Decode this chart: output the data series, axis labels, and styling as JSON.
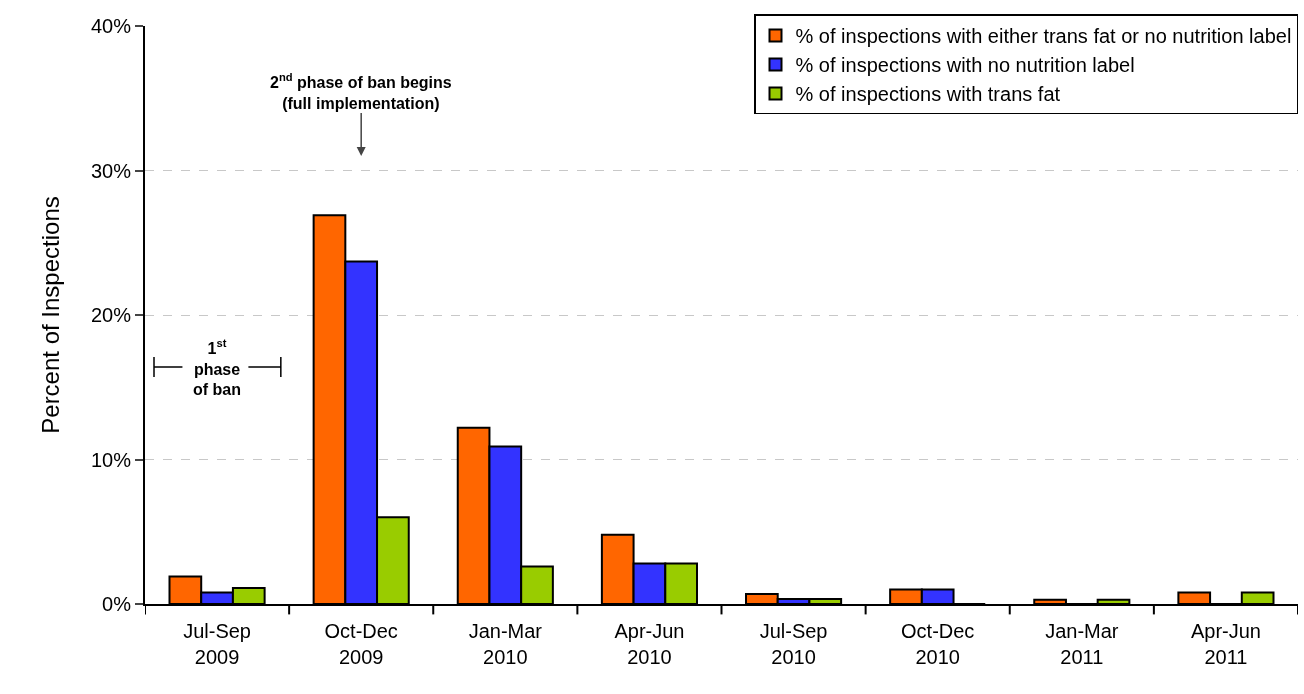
{
  "chart_data": {
    "type": "bar",
    "ylabel": "Percent of Inspections",
    "categories": [
      "Jul-Sep\n2009",
      "Oct-Dec\n2009",
      "Jan-Mar\n2010",
      "Apr-Jun\n2010",
      "Jul-Sep\n2010",
      "Oct-Dec\n2010",
      "Jan-Mar\n2011",
      "Apr-Jun\n2011"
    ],
    "series": [
      {
        "name": "% of inspections with either trans fat or no nutrition label",
        "color": "#ff6600",
        "values": [
          1.9,
          26.9,
          12.2,
          4.8,
          0.7,
          1.0,
          0.3,
          0.8
        ]
      },
      {
        "name": "% of inspections with no nutrition label",
        "color": "#3333ff",
        "values": [
          0.8,
          23.7,
          10.9,
          2.8,
          0.35,
          1.0,
          0,
          0
        ]
      },
      {
        "name": "% of inspections with trans fat",
        "color": "#99cc00",
        "values": [
          1.1,
          6.0,
          2.6,
          2.8,
          0.35,
          0,
          0.3,
          0.8
        ]
      }
    ],
    "ylim": [
      0,
      40
    ],
    "yticks": [
      {
        "value": 0,
        "label": "0%"
      },
      {
        "value": 10,
        "label": "10%"
      },
      {
        "value": 20,
        "label": "20%"
      },
      {
        "value": 30,
        "label": "30%"
      },
      {
        "value": 40,
        "label": "40%"
      }
    ],
    "grid": "y",
    "legend": "top right",
    "annotations": [
      "2$^{nd}$ phase of ban begins\n(full implementation)",
      "1$^{st}$\nphase\nof ban"
    ]
  }
}
